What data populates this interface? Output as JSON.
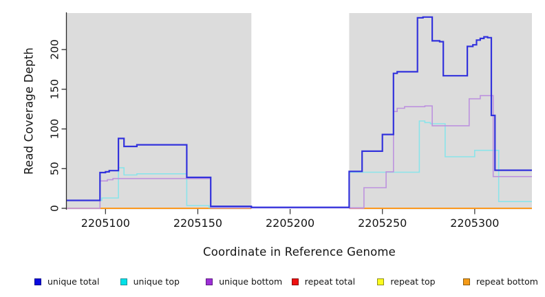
{
  "chart_data": {
    "type": "line",
    "subtype": "step",
    "title": "",
    "xlabel": "Coordinate in Reference Genome",
    "ylabel": "Read Coverage Depth",
    "xlim": [
      2205079,
      2205331
    ],
    "ylim": [
      0,
      246
    ],
    "x_ticks": [
      2205100,
      2205150,
      2205200,
      2205250,
      2205300
    ],
    "y_ticks": [
      0,
      50,
      100,
      150,
      200
    ],
    "grid": false,
    "legend_position": "bottom",
    "background_bands": [
      {
        "name": "left-shaded-region",
        "x0": 2205079,
        "x1": 2205179,
        "color": "#dcdcdc"
      },
      {
        "name": "right-shaded-region",
        "x0": 2205232,
        "x1": 2205331,
        "color": "#dcdcdc"
      }
    ],
    "series": [
      {
        "name": "repeat top",
        "color": "#f3ef2a",
        "width": 1.5,
        "segments": [
          {
            "points": [
              [
                2205079,
                0
              ]
            ],
            "xend": 2205179
          },
          {
            "points": [
              [
                2205232,
                0
              ]
            ],
            "xend": 2205331
          }
        ]
      },
      {
        "name": "repeat total",
        "color": "#e8718f",
        "width": 1.5,
        "segments": [
          {
            "points": [
              [
                2205079,
                0
              ]
            ],
            "xend": 2205179
          },
          {
            "points": [
              [
                2205232,
                0
              ]
            ],
            "xend": 2205331
          }
        ]
      },
      {
        "name": "repeat bottom",
        "color": "#ff950f",
        "width": 1.8,
        "segments": [
          {
            "points": [
              [
                2205097,
                0
              ]
            ],
            "xend": 2205179
          },
          {
            "points": [
              [
                2205240,
                0
              ]
            ],
            "xend": 2205331
          }
        ]
      },
      {
        "name": "unique top",
        "color": "#8ae4ea",
        "width": 1.6,
        "segments": [
          {
            "points": [
              [
                2205079,
                10
              ],
              [
                2205098,
                13
              ],
              [
                2205107,
                51
              ],
              [
                2205110,
                42
              ],
              [
                2205117,
                43.5
              ],
              [
                2205144,
                3.5
              ],
              [
                2205156,
                1
              ]
            ],
            "xend": 2205179
          },
          {
            "points": [
              [
                2205232,
                45.5
              ],
              [
                2205270,
                110
              ],
              [
                2205273,
                108
              ],
              [
                2205276,
                106.5
              ],
              [
                2205284,
                65
              ],
              [
                2205300,
                73
              ],
              [
                2205313,
                8.5
              ]
            ],
            "xend": 2205331
          }
        ]
      },
      {
        "name": "unique bottom",
        "color": "#bd92de",
        "width": 1.6,
        "segments": [
          {
            "points": [
              [
                2205079,
                0
              ],
              [
                2205097,
                34.5
              ],
              [
                2205101,
                36
              ],
              [
                2205104,
                37.5
              ],
              [
                2205157,
                0.6
              ],
              [
                2205240,
                26
              ],
              [
                2205252,
                46
              ],
              [
                2205256,
                122
              ],
              [
                2205258,
                126
              ],
              [
                2205262,
                128
              ],
              [
                2205273,
                129
              ],
              [
                2205277,
                104
              ],
              [
                2205297,
                138
              ],
              [
                2205303,
                142
              ],
              [
                2205310,
                40
              ]
            ],
            "xend": 2205331
          }
        ]
      },
      {
        "name": "unique total",
        "color": "#3232dc",
        "width": 2.2,
        "segments": [
          {
            "points": [
              [
                2205079,
                10
              ],
              [
                2205097,
                45
              ],
              [
                2205100,
                46
              ],
              [
                2205102,
                47.5
              ],
              [
                2205107,
                88
              ],
              [
                2205110,
                78
              ],
              [
                2205117,
                80
              ],
              [
                2205144,
                39
              ],
              [
                2205157,
                2.5
              ],
              [
                2205179,
                1.2
              ],
              [
                2205232,
                46.5
              ],
              [
                2205239,
                72
              ],
              [
                2205250,
                93
              ],
              [
                2205256,
                170
              ],
              [
                2205258,
                172
              ],
              [
                2205269,
                240
              ],
              [
                2205272,
                241
              ],
              [
                2205277,
                211
              ],
              [
                2205281,
                210
              ],
              [
                2205283,
                167
              ],
              [
                2205296,
                204
              ],
              [
                2205299,
                206
              ],
              [
                2205301,
                212
              ],
              [
                2205303,
                214
              ],
              [
                2205305,
                216
              ],
              [
                2205307,
                215
              ],
              [
                2205309,
                117
              ],
              [
                2205311,
                48
              ]
            ],
            "xend": 2205331
          }
        ]
      }
    ]
  },
  "legend": {
    "items": [
      {
        "label": "unique total",
        "fill": "#0a0ae0",
        "border": "#06068a"
      },
      {
        "label": "unique top",
        "fill": "#00e1e8",
        "border": "#17939b"
      },
      {
        "label": "unique bottom",
        "fill": "#9d2fd6",
        "border": "#5e1c82"
      },
      {
        "label": "repeat total",
        "fill": "#ee1010",
        "border": "#8a0b0b"
      },
      {
        "label": "repeat top",
        "fill": "#fbfb1e",
        "border": "#8f8f1a"
      },
      {
        "label": "repeat bottom",
        "fill": "#f59b18",
        "border": "#8a5c10"
      }
    ]
  },
  "colors": {
    "plot_background": "#ffffff",
    "band_gray": "#dcdcdc",
    "axis": "#2a2a2a",
    "tick": "#3d3d3d",
    "text": "#141414"
  }
}
